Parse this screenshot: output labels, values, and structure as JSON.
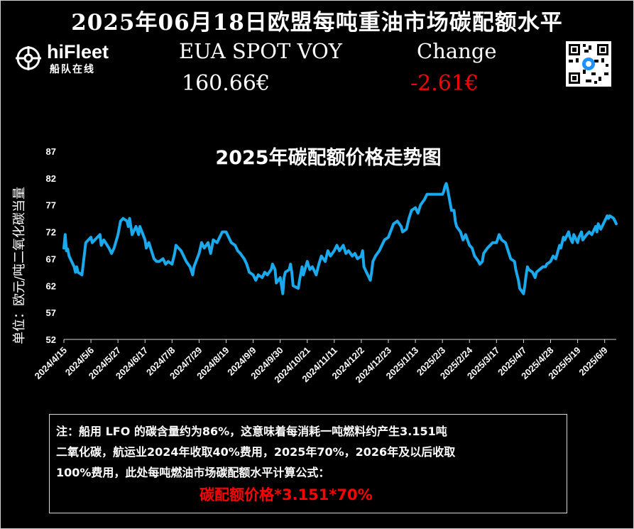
{
  "header": {
    "title": "2025年06月18日欧盟每吨重油市场碳配额水平"
  },
  "logo": {
    "name": "hiFleet",
    "subtitle": "船队在线"
  },
  "ticker": {
    "price_label": "EUA SPOT VOY",
    "price_value": "160.66€",
    "change_label": "Change",
    "change_value": "-2.61€"
  },
  "colors": {
    "background": "#000000",
    "line": "#19a9ec",
    "negative": "#ff0000",
    "text": "#ffffff"
  },
  "icons": {
    "logo_mark": "ship-wheel-icon",
    "qr_code": "qr-code-icon"
  },
  "chart_data": {
    "type": "line",
    "title": "2025年碳配额价格走势图",
    "xlabel": "",
    "ylabel": "单位：欧元/吨二氧化碳当量",
    "ylim": [
      52,
      87
    ],
    "yticks": [
      52,
      57,
      62,
      67,
      72,
      77,
      82,
      87
    ],
    "grid": false,
    "legend": "none",
    "xrange": [
      "2024-04-15",
      "2025-06-18"
    ],
    "xticks": [
      "2024/4/15",
      "2024/5/6",
      "2024/5/27",
      "2024/6/17",
      "2024/7/8",
      "2024/7/29",
      "2024/8/19",
      "2024/9/9",
      "2024/9/30",
      "2024/10/21",
      "2024/11/11",
      "2024/12/2",
      "2024/12/23",
      "2025/1/13",
      "2025/2/3",
      "2025/2/24",
      "2025/3/17",
      "2025/4/7",
      "2025/4/28",
      "2025/5/19",
      "2025/6/9"
    ],
    "series": [
      {
        "values": [
          [
            "2024-04-15",
            69
          ],
          [
            "2024-04-16",
            71.5
          ],
          [
            "2024-04-17",
            68.5
          ],
          [
            "2024-04-18",
            68.8
          ],
          [
            "2024-04-19",
            67.5
          ],
          [
            "2024-04-22",
            66
          ],
          [
            "2024-04-23",
            65.5
          ],
          [
            "2024-04-24",
            64.5
          ],
          [
            "2024-04-25",
            65.5
          ],
          [
            "2024-04-26",
            64.5
          ],
          [
            "2024-04-29",
            64
          ],
          [
            "2024-04-30",
            66
          ],
          [
            "2024-05-02",
            70
          ],
          [
            "2024-05-06",
            71
          ],
          [
            "2024-05-07",
            70
          ],
          [
            "2024-05-09",
            70.5
          ],
          [
            "2024-05-13",
            71.5
          ],
          [
            "2024-05-14",
            69.5
          ],
          [
            "2024-05-16",
            70.5
          ],
          [
            "2024-05-20",
            69
          ],
          [
            "2024-05-22",
            68
          ],
          [
            "2024-05-24",
            69
          ],
          [
            "2024-05-27",
            71.5
          ],
          [
            "2024-05-29",
            74
          ],
          [
            "2024-05-31",
            74.5
          ],
          [
            "2024-06-03",
            74
          ],
          [
            "2024-06-04",
            73
          ],
          [
            "2024-06-05",
            74.5
          ],
          [
            "2024-06-07",
            71.5
          ],
          [
            "2024-06-10",
            73
          ],
          [
            "2024-06-12",
            71.5
          ],
          [
            "2024-06-13",
            73
          ],
          [
            "2024-06-17",
            70.5
          ],
          [
            "2024-06-18",
            69
          ],
          [
            "2024-06-20",
            70
          ],
          [
            "2024-06-24",
            67
          ],
          [
            "2024-06-26",
            66.5
          ],
          [
            "2024-06-28",
            66.5
          ],
          [
            "2024-07-01",
            67
          ],
          [
            "2024-07-03",
            66
          ],
          [
            "2024-07-05",
            66.5
          ],
          [
            "2024-07-08",
            66
          ],
          [
            "2024-07-10",
            68
          ],
          [
            "2024-07-11",
            69.5
          ],
          [
            "2024-07-15",
            68.5
          ],
          [
            "2024-07-17",
            67.5
          ],
          [
            "2024-07-19",
            66.5
          ],
          [
            "2024-07-22",
            65.5
          ],
          [
            "2024-07-24",
            64
          ],
          [
            "2024-07-25",
            65.5
          ],
          [
            "2024-07-29",
            68
          ],
          [
            "2024-07-31",
            70
          ],
          [
            "2024-08-02",
            69
          ],
          [
            "2024-08-05",
            70
          ],
          [
            "2024-08-07",
            68
          ],
          [
            "2024-08-09",
            70.5
          ],
          [
            "2024-08-12",
            70
          ],
          [
            "2024-08-14",
            71
          ],
          [
            "2024-08-16",
            72
          ],
          [
            "2024-08-19",
            72
          ],
          [
            "2024-08-21",
            71
          ],
          [
            "2024-08-23",
            70
          ],
          [
            "2024-08-26",
            69.5
          ],
          [
            "2024-08-28",
            68.5
          ],
          [
            "2024-08-30",
            68
          ],
          [
            "2024-09-02",
            67
          ],
          [
            "2024-09-04",
            66
          ],
          [
            "2024-09-06",
            64.5
          ],
          [
            "2024-09-09",
            64
          ],
          [
            "2024-09-11",
            63
          ],
          [
            "2024-09-13",
            64
          ],
          [
            "2024-09-16",
            63.5
          ],
          [
            "2024-09-18",
            64.5
          ],
          [
            "2024-09-20",
            64
          ],
          [
            "2024-09-23",
            65
          ],
          [
            "2024-09-24",
            66
          ],
          [
            "2024-09-26",
            65
          ],
          [
            "2024-09-27",
            62.5
          ],
          [
            "2024-09-30",
            63.5
          ],
          [
            "2024-10-01",
            62
          ],
          [
            "2024-10-02",
            60.5
          ],
          [
            "2024-10-03",
            63.5
          ],
          [
            "2024-10-04",
            64.5
          ],
          [
            "2024-10-07",
            65
          ],
          [
            "2024-10-08",
            66
          ],
          [
            "2024-10-09",
            64.5
          ],
          [
            "2024-10-10",
            62
          ],
          [
            "2024-10-14",
            61.5
          ],
          [
            "2024-10-15",
            63
          ],
          [
            "2024-10-17",
            65.5
          ],
          [
            "2024-10-18",
            64
          ],
          [
            "2024-10-21",
            66.5
          ],
          [
            "2024-10-23",
            65
          ],
          [
            "2024-10-25",
            65.5
          ],
          [
            "2024-10-28",
            64
          ],
          [
            "2024-10-30",
            66
          ],
          [
            "2024-11-01",
            67.5
          ],
          [
            "2024-11-04",
            66.5
          ],
          [
            "2024-11-06",
            68.5
          ],
          [
            "2024-11-08",
            67.5
          ],
          [
            "2024-11-11",
            68.5
          ],
          [
            "2024-11-13",
            69.5
          ],
          [
            "2024-11-15",
            68.5
          ],
          [
            "2024-11-18",
            69.5
          ],
          [
            "2024-11-20",
            68
          ],
          [
            "2024-11-22",
            68.5
          ],
          [
            "2024-11-25",
            67.5
          ],
          [
            "2024-11-27",
            68
          ],
          [
            "2024-11-29",
            67
          ],
          [
            "2024-12-02",
            67.5
          ],
          [
            "2024-12-03",
            68.5
          ],
          [
            "2024-12-04",
            65.5
          ],
          [
            "2024-12-06",
            64.5
          ],
          [
            "2024-12-09",
            63
          ],
          [
            "2024-12-10",
            64.5
          ],
          [
            "2024-12-11",
            66.5
          ],
          [
            "2024-12-13",
            67.5
          ],
          [
            "2024-12-16",
            68.5
          ],
          [
            "2024-12-18",
            69.5
          ],
          [
            "2024-12-20",
            70.5
          ],
          [
            "2024-12-23",
            71
          ],
          [
            "2024-12-27",
            73.5
          ],
          [
            "2024-12-30",
            74
          ],
          [
            "2025-01-02",
            73
          ],
          [
            "2025-01-03",
            72
          ],
          [
            "2025-01-06",
            72.5
          ],
          [
            "2025-01-08",
            74.5
          ],
          [
            "2025-01-10",
            76
          ],
          [
            "2025-01-13",
            76.5
          ],
          [
            "2025-01-15",
            75.5
          ],
          [
            "2025-01-17",
            77
          ],
          [
            "2025-01-20",
            78
          ],
          [
            "2025-01-22",
            79
          ],
          [
            "2025-01-24",
            79
          ],
          [
            "2025-01-27",
            79
          ],
          [
            "2025-01-29",
            79
          ],
          [
            "2025-01-31",
            79
          ],
          [
            "2025-02-03",
            79
          ],
          [
            "2025-02-04",
            79.5
          ],
          [
            "2025-02-05",
            80.5
          ],
          [
            "2025-02-06",
            81
          ],
          [
            "2025-02-07",
            80
          ],
          [
            "2025-02-10",
            76
          ],
          [
            "2025-02-12",
            76
          ],
          [
            "2025-02-13",
            74
          ],
          [
            "2025-02-14",
            73
          ],
          [
            "2025-02-17",
            72
          ],
          [
            "2025-02-19",
            70.5
          ],
          [
            "2025-02-21",
            71.5
          ],
          [
            "2025-02-24",
            69.5
          ],
          [
            "2025-02-26",
            69
          ],
          [
            "2025-02-28",
            67.5
          ],
          [
            "2025-03-03",
            66.5
          ],
          [
            "2025-03-04",
            66
          ],
          [
            "2025-03-06",
            66.5
          ],
          [
            "2025-03-07",
            68
          ],
          [
            "2025-03-10",
            69
          ],
          [
            "2025-03-12",
            69.5
          ],
          [
            "2025-03-14",
            70
          ],
          [
            "2025-03-17",
            70
          ],
          [
            "2025-03-19",
            71.5
          ],
          [
            "2025-03-21",
            70.5
          ],
          [
            "2025-03-24",
            70
          ],
          [
            "2025-03-26",
            68.5
          ],
          [
            "2025-03-28",
            67
          ],
          [
            "2025-03-31",
            66.5
          ],
          [
            "2025-04-01",
            65
          ],
          [
            "2025-04-03",
            63
          ],
          [
            "2025-04-04",
            61.5
          ],
          [
            "2025-04-07",
            60.5
          ],
          [
            "2025-04-08",
            62
          ],
          [
            "2025-04-09",
            64
          ],
          [
            "2025-04-10",
            65.5
          ],
          [
            "2025-04-11",
            65
          ],
          [
            "2025-04-14",
            64.5
          ],
          [
            "2025-04-16",
            63.5
          ],
          [
            "2025-04-17",
            64.5
          ],
          [
            "2025-04-22",
            65.5
          ],
          [
            "2025-04-24",
            65.5
          ],
          [
            "2025-04-25",
            66
          ],
          [
            "2025-04-28",
            66.5
          ],
          [
            "2025-04-30",
            67.5
          ],
          [
            "2025-05-02",
            67
          ],
          [
            "2025-05-05",
            69.5
          ],
          [
            "2025-05-06",
            69
          ],
          [
            "2025-05-08",
            71
          ],
          [
            "2025-05-09",
            70.5
          ],
          [
            "2025-05-12",
            72
          ],
          [
            "2025-05-13",
            71
          ],
          [
            "2025-05-15",
            70
          ],
          [
            "2025-05-16",
            71.5
          ],
          [
            "2025-05-19",
            70
          ],
          [
            "2025-05-20",
            71
          ],
          [
            "2025-05-22",
            72
          ],
          [
            "2025-05-23",
            70.5
          ],
          [
            "2025-05-26",
            71.5
          ],
          [
            "2025-05-28",
            72
          ],
          [
            "2025-05-30",
            71.5
          ],
          [
            "2025-06-02",
            73
          ],
          [
            "2025-06-03",
            72
          ],
          [
            "2025-06-04",
            73.5
          ],
          [
            "2025-06-05",
            73
          ],
          [
            "2025-06-06",
            72.5
          ],
          [
            "2025-06-09",
            74
          ],
          [
            "2025-06-10",
            74.5
          ],
          [
            "2025-06-11",
            75
          ],
          [
            "2025-06-12",
            74.5
          ],
          [
            "2025-06-13",
            75
          ],
          [
            "2025-06-16",
            74.5
          ],
          [
            "2025-06-17",
            74
          ],
          [
            "2025-06-18",
            73.5
          ]
        ]
      }
    ]
  },
  "note": {
    "line1": "注：船用 LFO 的碳含量约为86%，这意味着每消耗一吨燃料约产生3.151吨",
    "line2": "二氧化碳，航运业2024年收取40%费用，2025年70%，2026年及以后收取",
    "line3": "100%费用，此处每吨燃油市场碳配额水平计算公式：",
    "formula": "碳配额价格*3.151*70%"
  }
}
